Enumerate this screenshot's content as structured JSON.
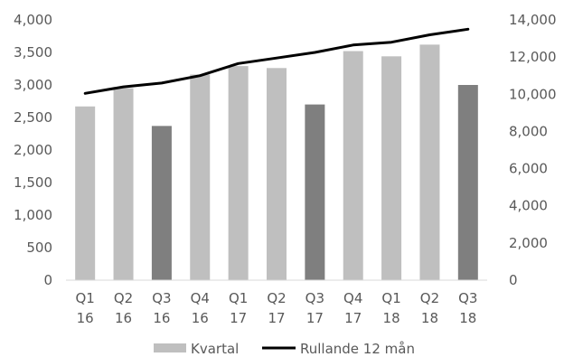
{
  "chart_data": {
    "type": "bar",
    "categories": [
      [
        "Q1",
        "16"
      ],
      [
        "Q2",
        "16"
      ],
      [
        "Q3",
        "16"
      ],
      [
        "Q4",
        "16"
      ],
      [
        "Q1",
        "17"
      ],
      [
        "Q2",
        "17"
      ],
      [
        "Q3",
        "17"
      ],
      [
        "Q4",
        "17"
      ],
      [
        "Q1",
        "18"
      ],
      [
        "Q2",
        "18"
      ],
      [
        "Q3",
        "18"
      ]
    ],
    "series": [
      {
        "name": "Kvartal",
        "type": "bar",
        "axis": "left",
        "values": [
          2670,
          2950,
          2370,
          3160,
          3290,
          3260,
          2700,
          3520,
          3440,
          3620,
          3000
        ],
        "color": "#bfbfbf",
        "highlight_color": "#7f7f7f",
        "highlight_indices": [
          2,
          6,
          10
        ]
      },
      {
        "name": "Rullande 12 mån",
        "type": "line",
        "axis": "right",
        "values": [
          10050,
          10400,
          10600,
          11000,
          11650,
          11950,
          12250,
          12650,
          12800,
          13200,
          13500
        ],
        "color": "#000000"
      }
    ],
    "left_axis": {
      "range": [
        0,
        4000
      ],
      "ticks": [
        0,
        500,
        1000,
        1500,
        2000,
        2500,
        3000,
        3500,
        4000
      ],
      "tick_labels": [
        "0",
        "500",
        "1,000",
        "1,500",
        "2,000",
        "2,500",
        "3,000",
        "3,500",
        "4,000"
      ]
    },
    "right_axis": {
      "range": [
        0,
        14000
      ],
      "ticks": [
        0,
        2000,
        4000,
        6000,
        8000,
        10000,
        12000,
        14000
      ],
      "tick_labels": [
        "0",
        "2,000",
        "4,000",
        "6,000",
        "8,000",
        "10,000",
        "12,000",
        "14,000"
      ]
    },
    "title": "",
    "xlabel": "",
    "ylabel": "",
    "grid": false,
    "legend": {
      "position": "bottom",
      "entries": [
        "Kvartal",
        "Rullande 12 mån"
      ]
    }
  }
}
